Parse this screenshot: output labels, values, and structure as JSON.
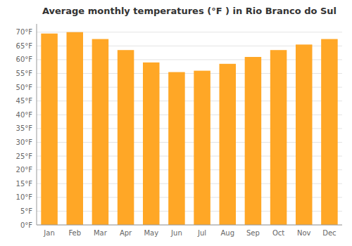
{
  "chart_data": {
    "type": "bar",
    "title": "Average monthly temperatures (°F ) in Rio Branco do Sul",
    "categories": [
      "Jan",
      "Feb",
      "Mar",
      "Apr",
      "May",
      "Jun",
      "Jul",
      "Aug",
      "Sep",
      "Oct",
      "Nov",
      "Dec"
    ],
    "values": [
      69.5,
      70.0,
      67.5,
      63.5,
      59.0,
      55.5,
      56.0,
      58.5,
      61.0,
      63.5,
      65.5,
      67.5
    ],
    "color": "#FFA726",
    "ylim": [
      0,
      73
    ],
    "yticks": [
      {
        "value": 0,
        "label": "0°F"
      },
      {
        "value": 5,
        "label": "5°F"
      },
      {
        "value": 10,
        "label": "10°F"
      },
      {
        "value": 15,
        "label": "15°F"
      },
      {
        "value": 20,
        "label": "20°F"
      },
      {
        "value": 25,
        "label": "25°F"
      },
      {
        "value": 30,
        "label": "30°F"
      },
      {
        "value": 35,
        "label": "35°F"
      },
      {
        "value": 40,
        "label": "40°F"
      },
      {
        "value": 45,
        "label": "45°F"
      },
      {
        "value": 50,
        "label": "50°F"
      },
      {
        "value": 55,
        "label": "55°F"
      },
      {
        "value": 60,
        "label": "60°F"
      },
      {
        "value": 65,
        "label": "65°F"
      },
      {
        "value": 70,
        "label": "70°F"
      }
    ],
    "grid": true
  }
}
